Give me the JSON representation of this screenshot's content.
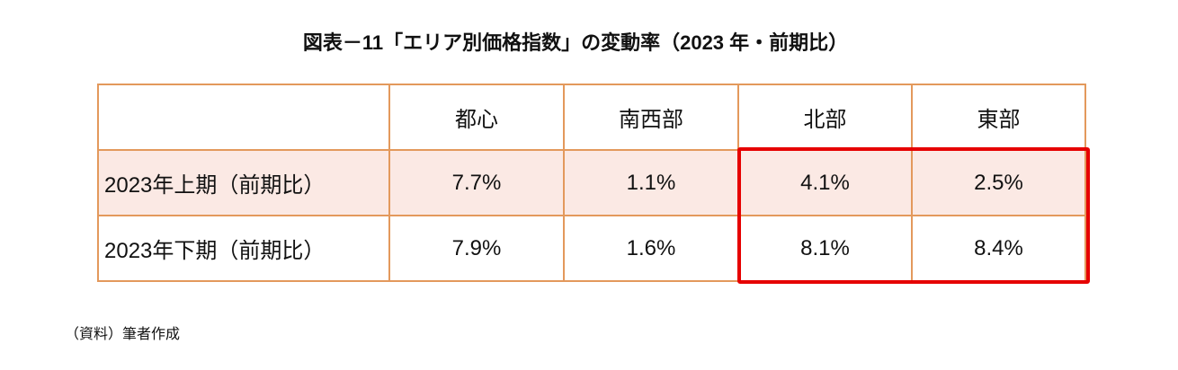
{
  "header": {
    "title": "図表－11「エリア別価格指数」の変動率（2023 年・前期比）"
  },
  "table": {
    "columns": [
      "都心",
      "南西部",
      "北部",
      "東部"
    ],
    "rows": [
      {
        "label": "2023年上期（前期比）",
        "cells": [
          "7.7%",
          "1.1%",
          "4.1%",
          "2.5%"
        ]
      },
      {
        "label": "2023年下期（前期比）",
        "cells": [
          "7.9%",
          "1.6%",
          "8.1%",
          "8.4%"
        ]
      }
    ]
  },
  "footer": {
    "source": "（資料）筆者作成"
  }
}
